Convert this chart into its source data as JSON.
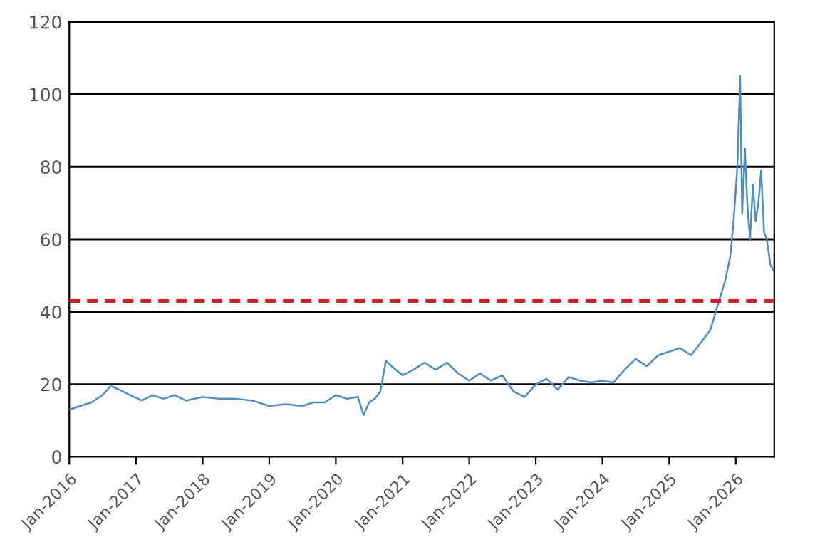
{
  "chart_data": {
    "type": "line",
    "x": [
      "2016-01-01",
      "2016-03-01",
      "2016-05-01",
      "2016-07-01",
      "2016-08-15",
      "2016-10-01",
      "2016-12-01",
      "2017-02-01",
      "2017-04-01",
      "2017-06-01",
      "2017-08-01",
      "2017-10-01",
      "2018-01-01",
      "2018-04-01",
      "2018-07-01",
      "2018-10-01",
      "2019-01-01",
      "2019-04-01",
      "2019-07-01",
      "2019-09-01",
      "2019-11-01",
      "2020-01-01",
      "2020-03-01",
      "2020-05-01",
      "2020-06-01",
      "2020-07-01",
      "2020-08-01",
      "2020-09-01",
      "2020-10-01",
      "2020-11-01",
      "2021-01-01",
      "2021-03-01",
      "2021-05-01",
      "2021-07-01",
      "2021-09-01",
      "2021-11-01",
      "2022-01-01",
      "2022-03-01",
      "2022-05-01",
      "2022-07-01",
      "2022-09-01",
      "2022-11-01",
      "2023-01-01",
      "2023-03-01",
      "2023-05-01",
      "2023-07-01",
      "2023-09-01",
      "2023-11-01",
      "2024-01-01",
      "2024-03-01",
      "2024-05-01",
      "2024-07-01",
      "2024-09-01",
      "2024-11-01",
      "2025-01-01",
      "2025-03-01",
      "2025-05-01",
      "2025-07-01",
      "2025-08-15",
      "2025-10-01",
      "2025-11-01",
      "2025-12-01",
      "2025-12-20",
      "2026-01-10",
      "2026-01-25",
      "2026-02-05",
      "2026-02-20",
      "2026-03-05",
      "2026-03-20",
      "2026-04-05",
      "2026-04-20",
      "2026-05-05",
      "2026-05-20",
      "2026-06-05",
      "2026-06-20",
      "2026-07-10",
      "2026-07-31"
    ],
    "series": [
      {
        "color": "#4a8ec8",
        "values": [
          13,
          14,
          15,
          17,
          19.5,
          18.5,
          17,
          15.5,
          17,
          16,
          17,
          15.5,
          16.5,
          16,
          16,
          15.5,
          14,
          14.5,
          14,
          15,
          15,
          17,
          16,
          16.5,
          11.5,
          15,
          16,
          18,
          26.5,
          25,
          22.5,
          24,
          26,
          24,
          26,
          23,
          21,
          23,
          21,
          22.5,
          18,
          16.5,
          20,
          21.5,
          18.5,
          22,
          21,
          20.5,
          21,
          20.5,
          24,
          27,
          25,
          28,
          29,
          30,
          28,
          32,
          35,
          43,
          48,
          55,
          65,
          80,
          105,
          67,
          85,
          70,
          60,
          75,
          65,
          70,
          79,
          62,
          60,
          53,
          51
        ]
      }
    ],
    "xlim": [
      "2016-01-01",
      "2026-07-31"
    ],
    "xticks": [
      {
        "value": "2016-01-01",
        "label": "Jan-2016"
      },
      {
        "value": "2017-01-01",
        "label": "Jan-2017"
      },
      {
        "value": "2018-01-01",
        "label": "Jan-2018"
      },
      {
        "value": "2019-01-01",
        "label": "Jan-2019"
      },
      {
        "value": "2020-01-01",
        "label": "Jan-2020"
      },
      {
        "value": "2021-01-01",
        "label": "Jan-2021"
      },
      {
        "value": "2022-01-01",
        "label": "Jan-2022"
      },
      {
        "value": "2023-01-01",
        "label": "Jan-2023"
      },
      {
        "value": "2024-01-01",
        "label": "Jan-2024"
      },
      {
        "value": "2025-01-01",
        "label": "Jan-2025"
      },
      {
        "value": "2026-01-01",
        "label": "Jan-2026"
      }
    ],
    "ylim": [
      0,
      120
    ],
    "yticks": [
      0,
      20,
      40,
      60,
      80,
      100,
      120
    ],
    "grid": "y",
    "legend": false,
    "ref_lines": [
      {
        "axis": "y",
        "value": 43,
        "color": "#e31a1c",
        "line_style": "dashed"
      }
    ]
  }
}
